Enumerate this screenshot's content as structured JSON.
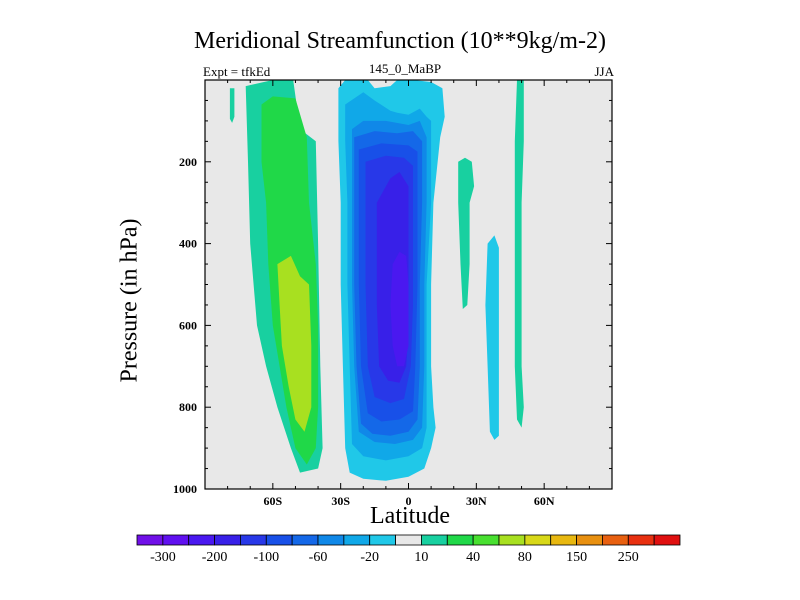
{
  "chart_data": {
    "type": "heatmap",
    "title": "Meridional Streamfunction (10**9kg/m-2)",
    "left_string": "Expt = tfkEd",
    "center_string": "145_0_MaBP",
    "right_string": "JJA",
    "xlabel": "Latitude",
    "ylabel": "Pressure (in hPa)",
    "xlim": [
      -90,
      90
    ],
    "ylim": [
      0,
      1000
    ],
    "y_reversed": true,
    "x_ticks": [
      {
        "value": -60,
        "label": "60S"
      },
      {
        "value": -30,
        "label": "30S"
      },
      {
        "value": 0,
        "label": "0"
      },
      {
        "value": 30,
        "label": "30N"
      },
      {
        "value": 60,
        "label": "60N"
      }
    ],
    "y_ticks": [
      {
        "value": 200,
        "label": "200"
      },
      {
        "value": 400,
        "label": "400"
      },
      {
        "value": 600,
        "label": "600"
      },
      {
        "value": 800,
        "label": "800"
      },
      {
        "value": 1000,
        "label": "1000"
      }
    ],
    "background_color": "#e8e8e8",
    "colorbar": {
      "levels": [
        -300,
        -250,
        -200,
        -150,
        -100,
        -80,
        -60,
        -40,
        -20,
        -10,
        10,
        20,
        40,
        60,
        80,
        100,
        150,
        200,
        250,
        300
      ],
      "labels": [
        "-300",
        "-200",
        "-100",
        "-60",
        "-20",
        "10",
        "40",
        "80",
        "150",
        "250"
      ],
      "colors": [
        "#7010e8",
        "#6010f0",
        "#4a18f0",
        "#3820e8",
        "#2838e8",
        "#1850e8",
        "#1468e8",
        "#1088e8",
        "#10a8e8",
        "#20c8e8",
        "#e8e8e8",
        "#18d0a0",
        "#20d848",
        "#48e030",
        "#a8e020",
        "#d8d818",
        "#e8b810",
        "#e89010",
        "#e86010",
        "#e83010",
        "#e01010"
      ]
    },
    "regions": [
      {
        "value": 12,
        "level_color": "#18d0a0",
        "polygon": [
          [
            -79,
            20
          ],
          [
            -77,
            20
          ],
          [
            -77,
            90
          ],
          [
            -78,
            105
          ],
          [
            -79,
            95
          ]
        ]
      },
      {
        "value": 25,
        "level_color": "#18d0a0",
        "polygon": [
          [
            -72,
            15
          ],
          [
            -60,
            0
          ],
          [
            -51,
            0
          ],
          [
            -48,
            120
          ],
          [
            -41,
            150
          ],
          [
            -40,
            400
          ],
          [
            -39,
            700
          ],
          [
            -38,
            900
          ],
          [
            -40,
            950
          ],
          [
            -48,
            960
          ],
          [
            -52,
            900
          ],
          [
            -58,
            800
          ],
          [
            -63,
            700
          ],
          [
            -67,
            600
          ],
          [
            -70,
            400
          ],
          [
            -71,
            200
          ]
        ]
      },
      {
        "value": 45,
        "level_color": "#20d848",
        "polygon": [
          [
            -65,
            60
          ],
          [
            -60,
            40
          ],
          [
            -50,
            45
          ],
          [
            -45,
            140
          ],
          [
            -44,
            300
          ],
          [
            -41,
            450
          ],
          [
            -40,
            600
          ],
          [
            -40,
            800
          ],
          [
            -41,
            900
          ],
          [
            -45,
            940
          ],
          [
            -50,
            900
          ],
          [
            -54,
            800
          ],
          [
            -57,
            700
          ],
          [
            -60,
            600
          ],
          [
            -62,
            450
          ],
          [
            -63,
            300
          ],
          [
            -65,
            200
          ]
        ]
      },
      {
        "value": 70,
        "level_color": "#a8e020",
        "polygon": [
          [
            -58,
            450
          ],
          [
            -52,
            430
          ],
          [
            -48,
            480
          ],
          [
            -44,
            500
          ],
          [
            -43,
            650
          ],
          [
            -43,
            800
          ],
          [
            -46,
            860
          ],
          [
            -50,
            830
          ],
          [
            -53,
            750
          ],
          [
            -56,
            650
          ],
          [
            -57,
            550
          ]
        ]
      },
      {
        "value": -15,
        "level_color": "#20c8e8",
        "polygon": [
          [
            -31,
            20
          ],
          [
            -28,
            0
          ],
          [
            -18,
            0
          ],
          [
            -15,
            20
          ],
          [
            -8,
            15
          ],
          [
            -5,
            0
          ],
          [
            2,
            0
          ],
          [
            10,
            5
          ],
          [
            15,
            20
          ],
          [
            16,
            90
          ],
          [
            14,
            140
          ],
          [
            11,
            300
          ],
          [
            10,
            500
          ],
          [
            10,
            700
          ],
          [
            11,
            800
          ],
          [
            12,
            850
          ],
          [
            10,
            900
          ],
          [
            7,
            950
          ],
          [
            0,
            970
          ],
          [
            -10,
            980
          ],
          [
            -20,
            975
          ],
          [
            -26,
            960
          ],
          [
            -28,
            900
          ],
          [
            -29,
            700
          ],
          [
            -30,
            500
          ],
          [
            -30,
            300
          ],
          [
            -31,
            150
          ]
        ]
      },
      {
        "value": -30,
        "level_color": "#10a8e8",
        "polygon": [
          [
            -28,
            60
          ],
          [
            -20,
            30
          ],
          [
            -15,
            50
          ],
          [
            -8,
            75
          ],
          [
            -5,
            80
          ],
          [
            0,
            85
          ],
          [
            5,
            70
          ],
          [
            8,
            90
          ],
          [
            10,
            100
          ],
          [
            10,
            300
          ],
          [
            8,
            500
          ],
          [
            8,
            700
          ],
          [
            8,
            850
          ],
          [
            6,
            900
          ],
          [
            0,
            920
          ],
          [
            -10,
            930
          ],
          [
            -20,
            920
          ],
          [
            -25,
            890
          ],
          [
            -26,
            700
          ],
          [
            -27,
            500
          ],
          [
            -27,
            300
          ],
          [
            -28,
            150
          ]
        ]
      },
      {
        "value": -50,
        "level_color": "#1088e8",
        "polygon": [
          [
            -25,
            120
          ],
          [
            -20,
            100
          ],
          [
            -10,
            100
          ],
          [
            0,
            110
          ],
          [
            5,
            100
          ],
          [
            8,
            140
          ],
          [
            8,
            300
          ],
          [
            7,
            500
          ],
          [
            7,
            700
          ],
          [
            6,
            850
          ],
          [
            2,
            880
          ],
          [
            -6,
            890
          ],
          [
            -15,
            885
          ],
          [
            -22,
            860
          ],
          [
            -24,
            700
          ],
          [
            -25,
            500
          ],
          [
            -25,
            300
          ]
        ]
      },
      {
        "value": -70,
        "level_color": "#1468e8",
        "polygon": [
          [
            -24,
            140
          ],
          [
            -15,
            125
          ],
          [
            -5,
            130
          ],
          [
            2,
            125
          ],
          [
            6,
            150
          ],
          [
            6,
            300
          ],
          [
            5,
            500
          ],
          [
            5,
            700
          ],
          [
            4,
            830
          ],
          [
            0,
            860
          ],
          [
            -8,
            870
          ],
          [
            -16,
            865
          ],
          [
            -21,
            840
          ],
          [
            -23,
            700
          ],
          [
            -24,
            500
          ],
          [
            -24,
            300
          ]
        ]
      },
      {
        "value": -90,
        "level_color": "#1850e8",
        "polygon": [
          [
            -22,
            170
          ],
          [
            -12,
            155
          ],
          [
            0,
            160
          ],
          [
            4,
            175
          ],
          [
            4,
            300
          ],
          [
            4,
            500
          ],
          [
            3,
            700
          ],
          [
            2,
            810
          ],
          [
            -4,
            830
          ],
          [
            -12,
            835
          ],
          [
            -18,
            815
          ],
          [
            -21,
            700
          ],
          [
            -22,
            500
          ],
          [
            -22,
            300
          ]
        ]
      },
      {
        "value": -120,
        "level_color": "#2838e8",
        "polygon": [
          [
            -19,
            200
          ],
          [
            -10,
            185
          ],
          [
            -2,
            190
          ],
          [
            2,
            210
          ],
          [
            2,
            350
          ],
          [
            2,
            550
          ],
          [
            1,
            700
          ],
          [
            -2,
            780
          ],
          [
            -8,
            790
          ],
          [
            -15,
            775
          ],
          [
            -18,
            700
          ],
          [
            -19,
            500
          ],
          [
            -19,
            350
          ]
        ]
      },
      {
        "value": -170,
        "level_color": "#3820e8",
        "polygon": [
          [
            -14,
            300
          ],
          [
            -8,
            240
          ],
          [
            -4,
            225
          ],
          [
            0,
            260
          ],
          [
            0,
            400
          ],
          [
            0,
            600
          ],
          [
            -1,
            700
          ],
          [
            -4,
            740
          ],
          [
            -9,
            735
          ],
          [
            -13,
            700
          ],
          [
            -14,
            550
          ],
          [
            -14,
            400
          ]
        ]
      },
      {
        "value": -210,
        "level_color": "#4a18f0",
        "polygon": [
          [
            -7,
            450
          ],
          [
            -4,
            420
          ],
          [
            -1,
            430
          ],
          [
            0,
            500
          ],
          [
            0,
            650
          ],
          [
            -2,
            700
          ],
          [
            -5,
            700
          ],
          [
            -7,
            650
          ],
          [
            -8,
            550
          ]
        ]
      },
      {
        "value": 12,
        "level_color": "#18d0a0",
        "polygon": [
          [
            22,
            200
          ],
          [
            25,
            190
          ],
          [
            28,
            200
          ],
          [
            29,
            260
          ],
          [
            27,
            300
          ],
          [
            27,
            450
          ],
          [
            26,
            550
          ],
          [
            24,
            560
          ],
          [
            23,
            450
          ],
          [
            22,
            300
          ]
        ]
      },
      {
        "value": -12,
        "level_color": "#20c8e8",
        "polygon": [
          [
            35,
            400
          ],
          [
            38,
            380
          ],
          [
            40,
            410
          ],
          [
            40,
            600
          ],
          [
            40,
            800
          ],
          [
            40,
            870
          ],
          [
            38,
            880
          ],
          [
            36,
            860
          ],
          [
            35,
            700
          ],
          [
            34,
            550
          ]
        ]
      },
      {
        "value": 12,
        "level_color": "#18d0a0",
        "polygon": [
          [
            48,
            0
          ],
          [
            51,
            0
          ],
          [
            51,
            150
          ],
          [
            50,
            300
          ],
          [
            50,
            500
          ],
          [
            50,
            700
          ],
          [
            51,
            800
          ],
          [
            50,
            850
          ],
          [
            48,
            830
          ],
          [
            47,
            700
          ],
          [
            47,
            500
          ],
          [
            47,
            300
          ],
          [
            47,
            150
          ]
        ]
      }
    ]
  }
}
